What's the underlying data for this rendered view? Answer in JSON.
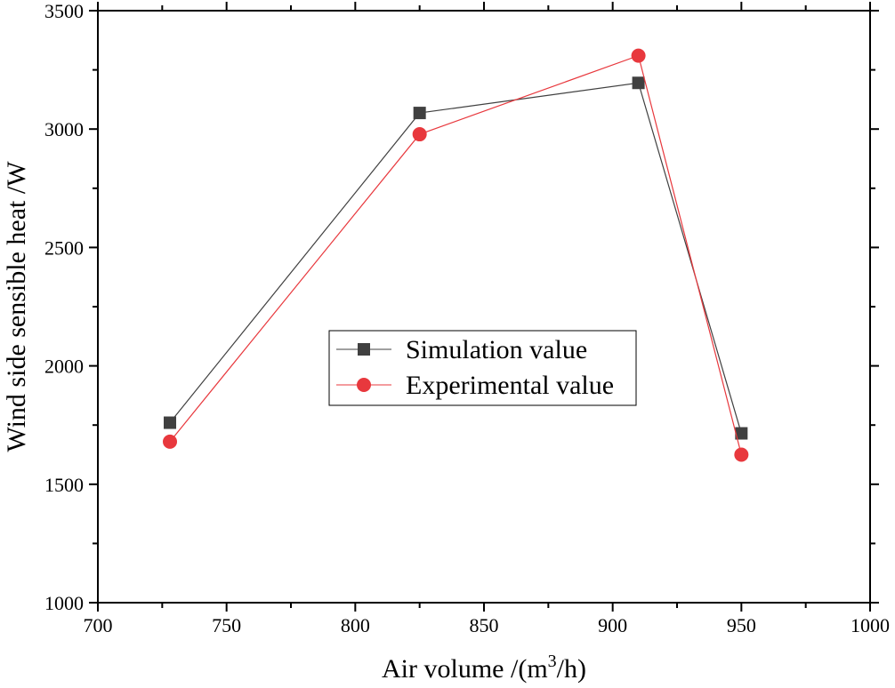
{
  "chart_data": {
    "type": "line",
    "title": "",
    "xlabel": "Air volume /(m³/h)",
    "xlabel_parts": {
      "prefix": "Air volume /(m",
      "sup": "3",
      "suffix": "/h)"
    },
    "ylabel": "Wind side sensible heat /W",
    "xlim": [
      700,
      1000
    ],
    "ylim": [
      1000,
      3500
    ],
    "x_ticks": [
      "700",
      "750",
      "800",
      "850",
      "900",
      "950",
      "1000"
    ],
    "y_ticks": [
      "1000",
      "1500",
      "2000",
      "2500",
      "3000",
      "3500"
    ],
    "x": [
      728,
      825,
      910,
      950
    ],
    "series": [
      {
        "name": "Simulation value",
        "marker": "square",
        "color": "#404040",
        "values": [
          1760,
          3068,
          3195,
          1715
        ]
      },
      {
        "name": "Experimental value",
        "marker": "circle",
        "color": "#e8383d",
        "values": [
          1680,
          2978,
          3310,
          1625
        ]
      }
    ],
    "legend_position": "center",
    "grid": false
  }
}
